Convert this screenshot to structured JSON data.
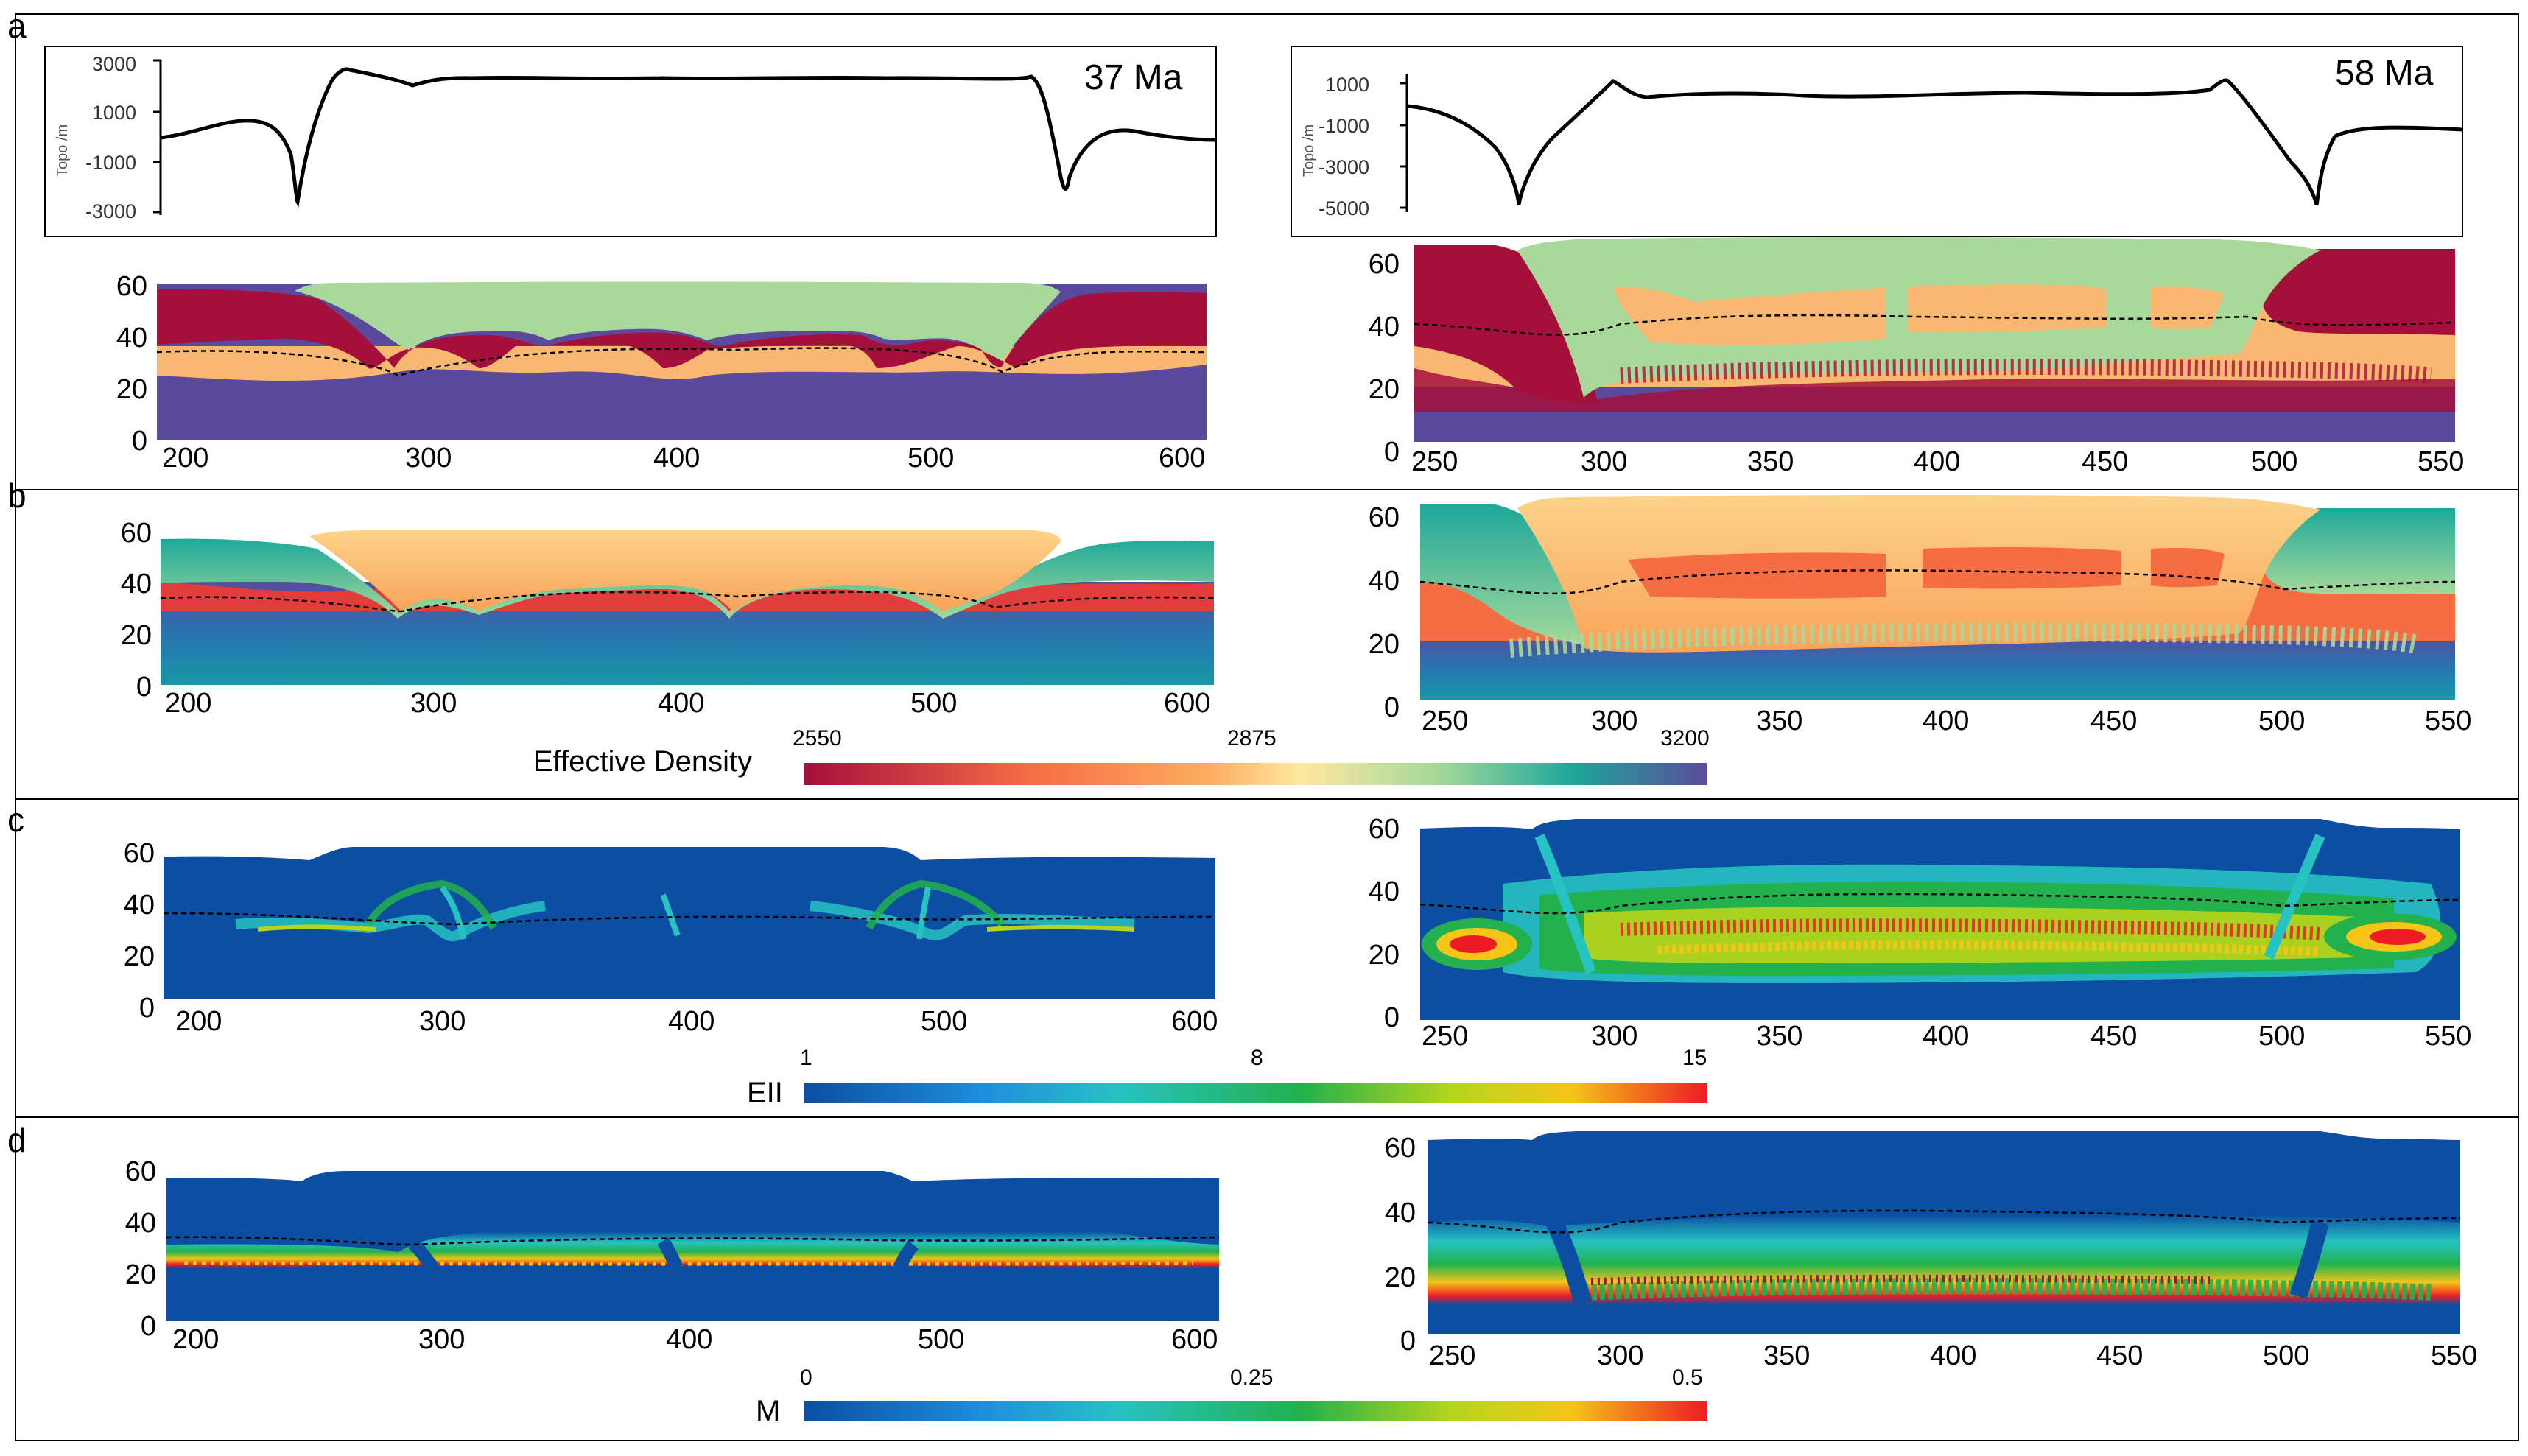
{
  "panels": {
    "a": "a",
    "b": "b",
    "c": "c",
    "d": "d"
  },
  "topography": {
    "axis_label": "Topo /m",
    "left": {
      "age": "37 Ma",
      "ticks": [
        "3000",
        "1000",
        "-1000",
        "-3000"
      ]
    },
    "right": {
      "age": "58 Ma",
      "ticks": [
        "1000",
        "-1000",
        "-3000",
        "-5000"
      ]
    }
  },
  "model_axes": {
    "depth_ticks": [
      "60",
      "40",
      "20",
      "0"
    ],
    "left_x_ticks": [
      "200",
      "300",
      "400",
      "500",
      "600"
    ],
    "right_x_ticks": [
      "250",
      "300",
      "350",
      "400",
      "450",
      "500",
      "550"
    ]
  },
  "colorbars": {
    "density": {
      "title": "Effective Density",
      "ticks": [
        "2550",
        "2875",
        "3200"
      ]
    },
    "strain": {
      "title": "EII",
      "ticks": [
        "1",
        "8",
        "15"
      ]
    },
    "melt": {
      "title": "M",
      "ticks": [
        "0",
        "0.25",
        "0.5"
      ]
    }
  },
  "colors": {
    "mantle": "#5b4a9c",
    "lower_crust": "#f9b872",
    "upper_crust": "#a50f3c",
    "sediment": "#a8d89a",
    "background_blue": "#0b4ea2"
  }
}
